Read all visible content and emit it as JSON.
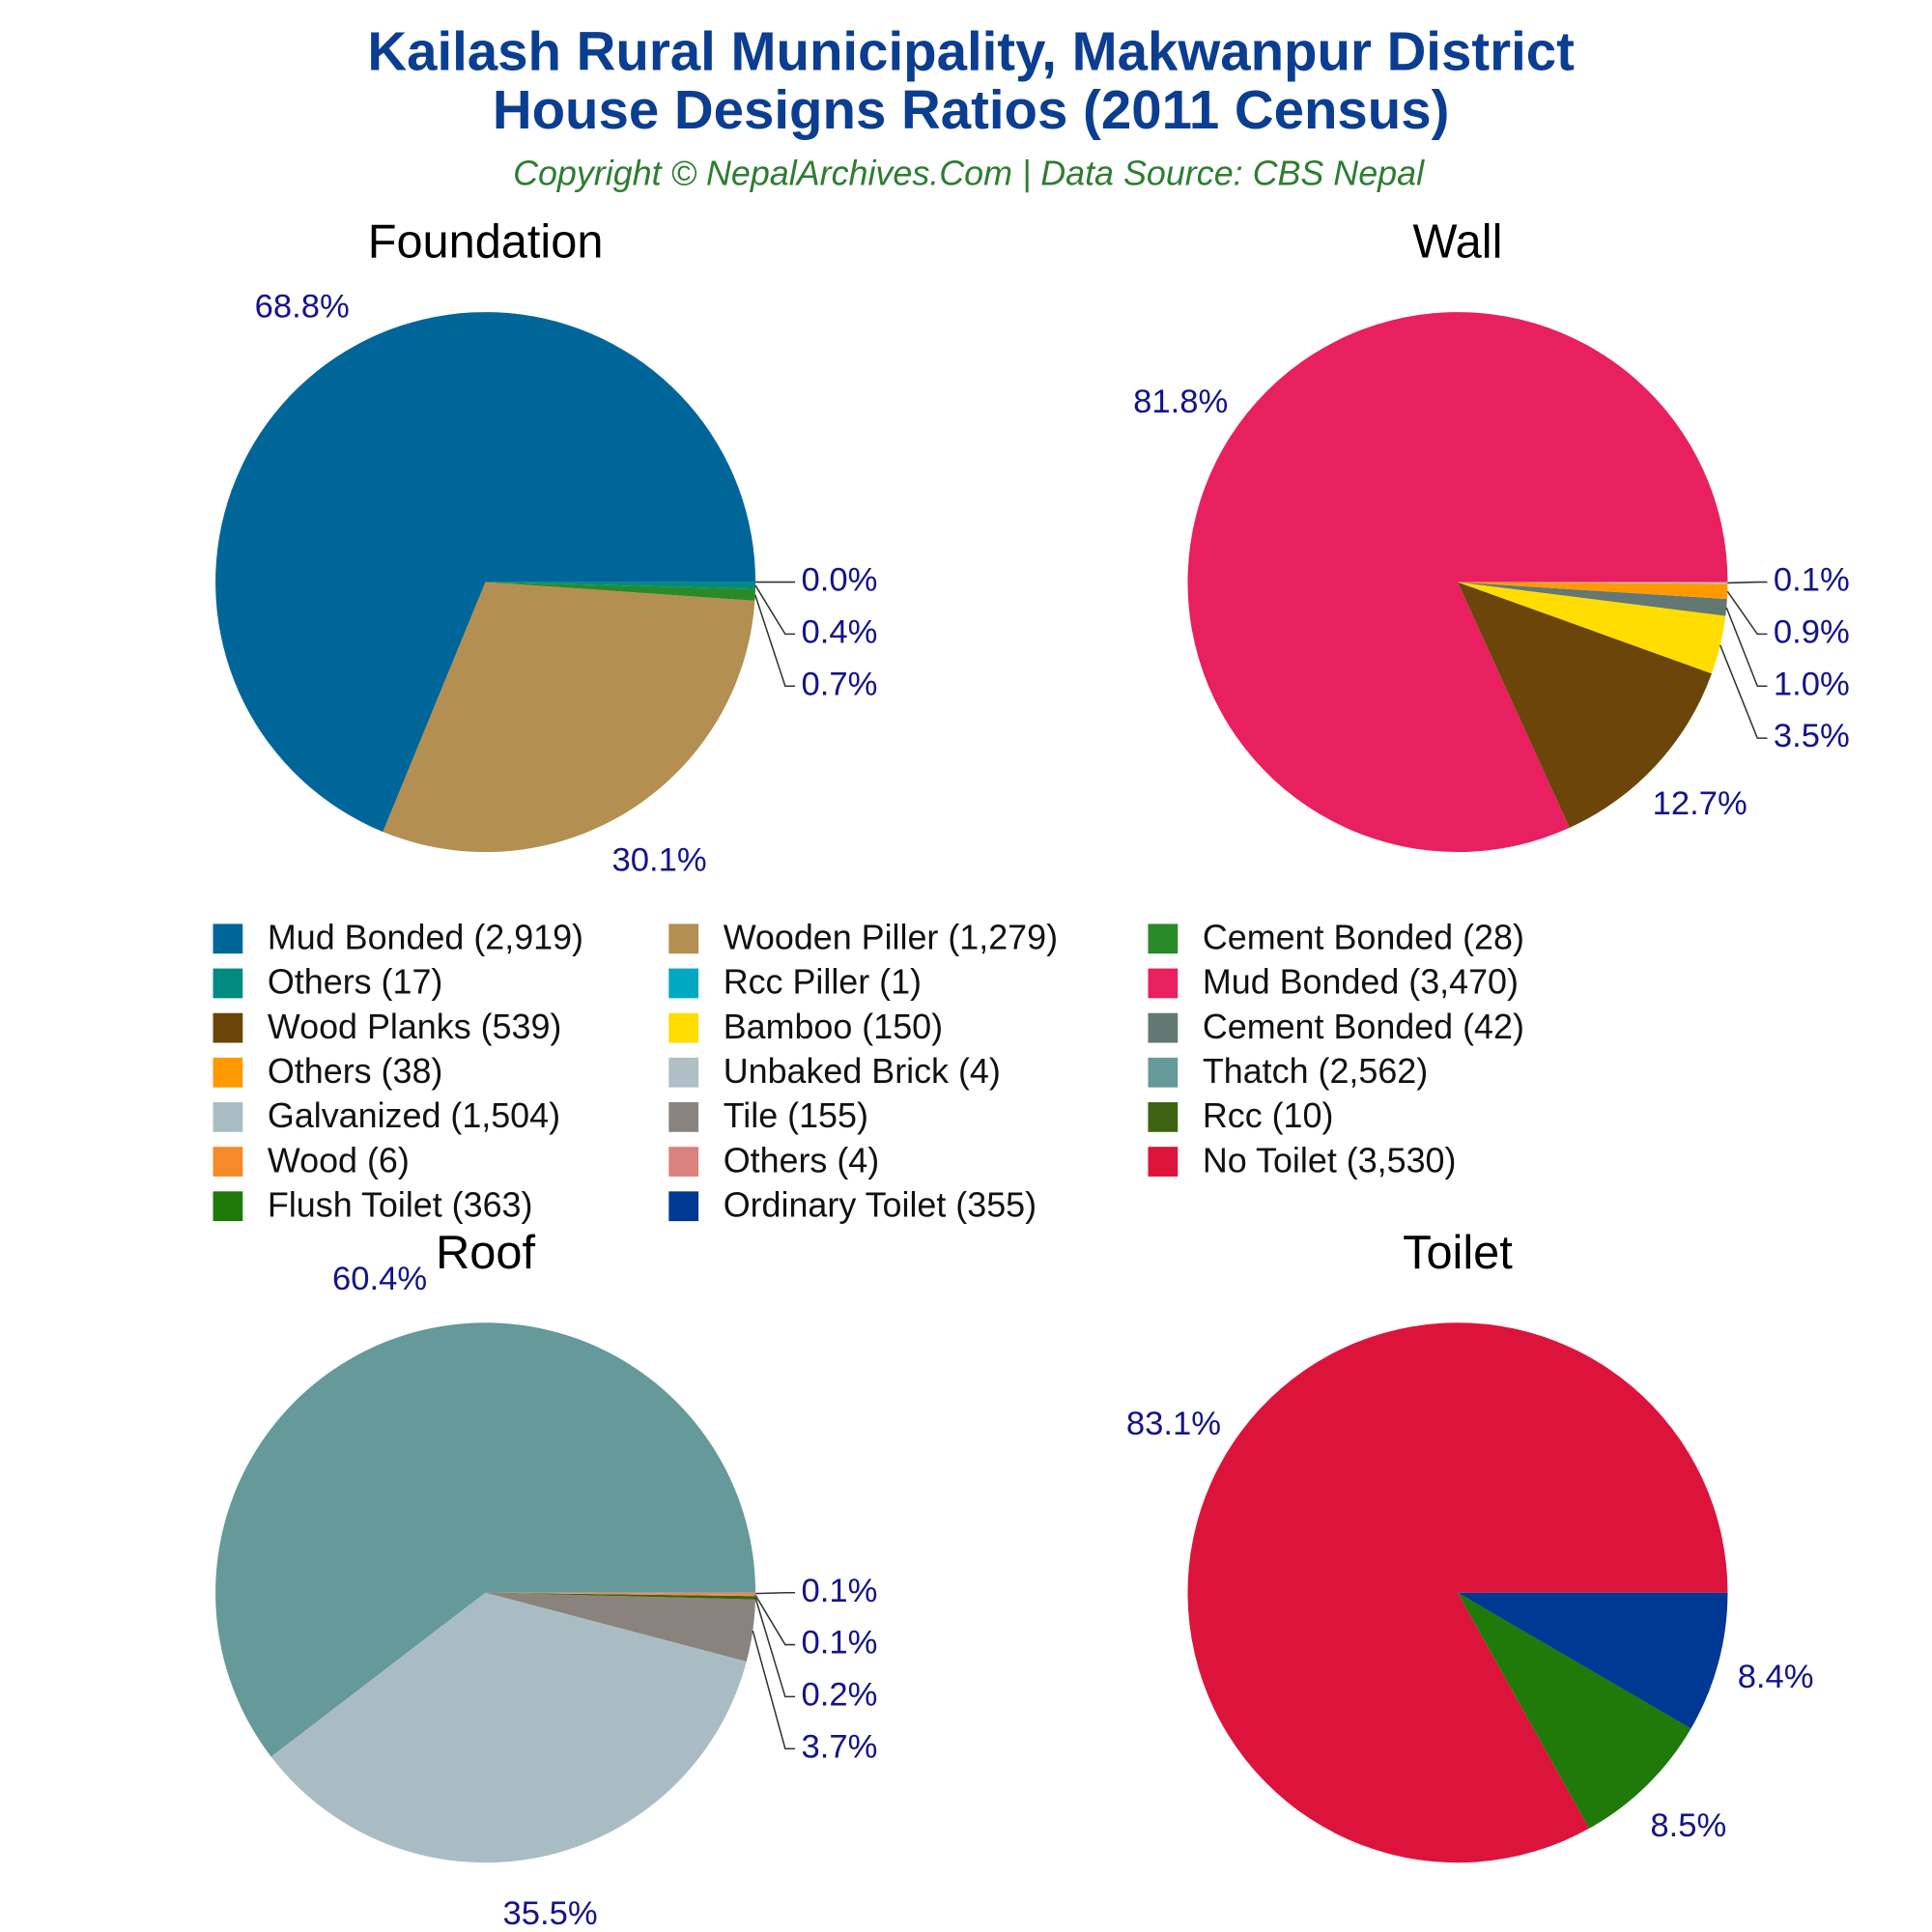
{
  "title": [
    "Kailash Rural Municipality, Makwanpur District",
    "House Designs Ratios (2011 Census)"
  ],
  "subtitle": "Copyright © NepalArchives.Com | Data Source: CBS Nepal",
  "chart_data": [
    {
      "type": "pie",
      "title": "Foundation",
      "categories": [
        "Mud Bonded (2,919)",
        "Wooden Piller (1,279)",
        "Cement Bonded (28)",
        "Others (17)",
        "Rcc Piller (1)"
      ],
      "values": [
        68.8,
        30.1,
        0.7,
        0.4,
        0.0
      ],
      "value_labels": [
        "68.8%",
        "30.1%",
        "0.7%",
        "0.4%",
        "0.0%"
      ],
      "colors": [
        "#006699",
        "#b38f52",
        "#2a8a2a",
        "#008b80",
        "#00a9bf"
      ]
    },
    {
      "type": "pie",
      "title": "Wall",
      "categories": [
        "Mud Bonded (3,470)",
        "Wood Planks (539)",
        "Bamboo (150)",
        "Cement Bonded (42)",
        "Others (38)",
        "Unbaked Brick (4)"
      ],
      "values": [
        81.8,
        12.7,
        3.5,
        1.0,
        0.9,
        0.1
      ],
      "value_labels": [
        "81.8%",
        "12.7%",
        "3.5%",
        "1.0%",
        "0.9%",
        "0.1%"
      ],
      "colors": [
        "#e8205f",
        "#6b4509",
        "#ffdd00",
        "#637872",
        "#ff9900",
        "#b0bec5"
      ]
    },
    {
      "type": "pie",
      "title": "Roof",
      "categories": [
        "Thatch (2,562)",
        "Galvanized (1,504)",
        "Tile (155)",
        "Rcc (10)",
        "Wood (6)",
        "Others (4)"
      ],
      "values": [
        60.4,
        35.5,
        3.7,
        0.2,
        0.1,
        0.1
      ],
      "value_labels": [
        "60.4%",
        "35.5%",
        "3.7%",
        "0.2%",
        "0.1%",
        "0.1%"
      ],
      "colors": [
        "#669999",
        "#a9bcc4",
        "#8a837d",
        "#3d6312",
        "#f58a28",
        "#d9827f"
      ]
    },
    {
      "type": "pie",
      "title": "Toilet",
      "categories": [
        "No Toilet (3,530)",
        "Flush Toilet (363)",
        "Ordinary Toilet (355)"
      ],
      "values": [
        83.1,
        8.5,
        8.4
      ],
      "value_labels": [
        "83.1%",
        "8.5%",
        "8.4%"
      ],
      "colors": [
        "#dc143c",
        "#1f7a0a",
        "#003893"
      ]
    }
  ]
}
